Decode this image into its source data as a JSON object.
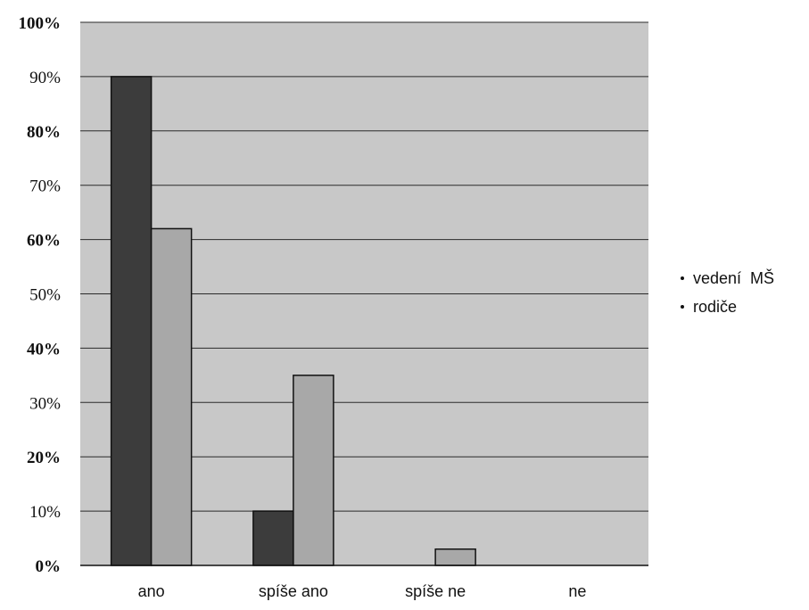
{
  "chart_data": {
    "type": "bar",
    "categories": [
      "ano",
      "spíše ano",
      "spíše ne",
      "ne"
    ],
    "series": [
      {
        "name": "vedení  MŠ",
        "values": [
          90,
          10,
          0,
          0
        ],
        "color": "#3c3c3c"
      },
      {
        "name": "rodiče",
        "values": [
          62,
          35,
          3,
          0
        ],
        "color": "#a8a8a8"
      }
    ],
    "ylim": [
      0,
      100
    ],
    "yticks": [
      "0%",
      "10%",
      "20%",
      "30%",
      "40%",
      "50%",
      "60%",
      "70%",
      "80%",
      "90%",
      "100%"
    ],
    "grid": true,
    "legend": "right",
    "plot_background": "#c8c8c8",
    "gridline_color": "#2a2a2a"
  }
}
